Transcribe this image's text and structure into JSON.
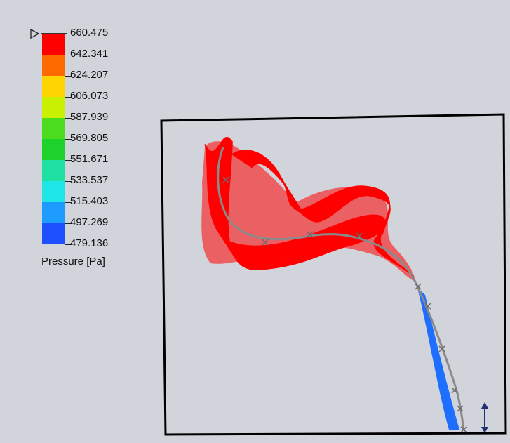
{
  "legend": {
    "values": [
      "660.475",
      "642.341",
      "624.207",
      "606.073",
      "587.939",
      "569.805",
      "551.671",
      "533.537",
      "515.403",
      "497.269",
      "479.136"
    ],
    "caption": "Pressure [Pa]",
    "colors": [
      "#ff0000",
      "#ff6a00",
      "#ffd400",
      "#c8f000",
      "#4cdc1e",
      "#1ed22c",
      "#1ee0a0",
      "#1ee6e6",
      "#1e9bff",
      "#1e50ff",
      "#0000ff"
    ]
  },
  "scene": {
    "frame_color": "#000000",
    "high_pressure_color": "#ff0000",
    "low_pressure_color": "#1e6eff",
    "centerline_color": "#8a8a8a",
    "marker_icon": "triangle-pointer-icon",
    "axis_icon": "vertical-arrow-icon"
  }
}
